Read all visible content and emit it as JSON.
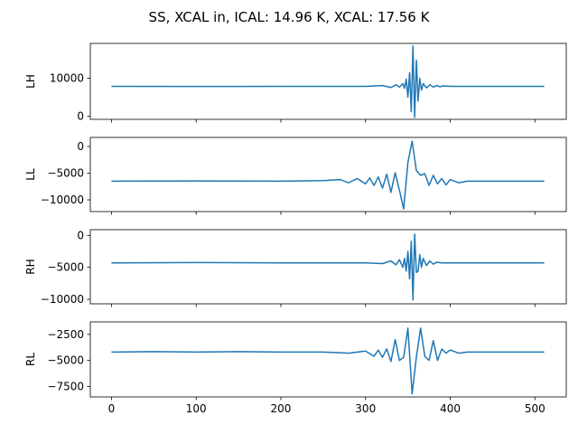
{
  "title": "SS, XCAL in, ICAL: 14.96 K, XCAL: 17.56 K",
  "line_color": "#1f77b4",
  "chart_data": [
    {
      "type": "line",
      "ylabel": "LH",
      "xlim": [
        -25,
        537
      ],
      "ylim": [
        -800,
        19200
      ],
      "yticks": [
        0,
        10000
      ],
      "ytick_labels": [
        "0",
        "10000"
      ],
      "baseline": 7900,
      "x": [
        0,
        100,
        200,
        300,
        320,
        330,
        336,
        340,
        344,
        346,
        348,
        350,
        352,
        354,
        356,
        358,
        360,
        362,
        364,
        366,
        368,
        372,
        376,
        380,
        384,
        388,
        392,
        400,
        420,
        450,
        511
      ],
      "y": [
        7900,
        7850,
        7900,
        7900,
        8100,
        7600,
        8300,
        7700,
        8600,
        7400,
        9800,
        5100,
        11500,
        1200,
        18500,
        -300,
        14800,
        4000,
        10000,
        6900,
        8600,
        7500,
        8300,
        7700,
        8100,
        7800,
        8000,
        7900,
        7900,
        7900,
        7900
      ]
    },
    {
      "type": "line",
      "ylabel": "LL",
      "xlim": [
        -25,
        537
      ],
      "ylim": [
        -12200,
        1700
      ],
      "yticks": [
        -10000,
        -5000,
        0
      ],
      "ytick_labels": [
        "−10000",
        "−5000",
        "0"
      ],
      "baseline": -6500,
      "x": [
        0,
        100,
        200,
        250,
        270,
        280,
        290,
        300,
        305,
        310,
        315,
        320,
        325,
        330,
        335,
        340,
        345,
        350,
        355,
        360,
        365,
        370,
        375,
        380,
        385,
        390,
        395,
        400,
        410,
        420,
        450,
        511
      ],
      "y": [
        -6500,
        -6450,
        -6500,
        -6400,
        -6200,
        -6800,
        -6000,
        -7000,
        -5900,
        -7300,
        -5700,
        -7800,
        -5200,
        -8600,
        -4900,
        -8200,
        -11700,
        -3000,
        1000,
        -4500,
        -5400,
        -5100,
        -7300,
        -5400,
        -7000,
        -6000,
        -7200,
        -6200,
        -6800,
        -6500,
        -6500,
        -6500
      ]
    },
    {
      "type": "line",
      "ylabel": "RH",
      "xlim": [
        -25,
        537
      ],
      "ylim": [
        -10700,
        900
      ],
      "yticks": [
        -10000,
        -5000,
        0
      ],
      "ytick_labels": [
        "−10000",
        "−5000",
        "0"
      ],
      "baseline": -4300,
      "x": [
        0,
        100,
        200,
        300,
        320,
        330,
        336,
        340,
        344,
        346,
        348,
        350,
        352,
        354,
        356,
        358,
        360,
        362,
        364,
        366,
        368,
        372,
        376,
        380,
        384,
        390,
        400,
        420,
        450,
        511
      ],
      "y": [
        -4300,
        -4250,
        -4300,
        -4300,
        -4400,
        -4000,
        -4600,
        -3800,
        -5000,
        -3600,
        -5600,
        -2500,
        -6800,
        -900,
        -10100,
        200,
        -5800,
        -5600,
        -3000,
        -5000,
        -3600,
        -4700,
        -4000,
        -4500,
        -4200,
        -4300,
        -4300,
        -4300,
        -4300,
        -4300
      ]
    },
    {
      "type": "line",
      "ylabel": "RL",
      "xlim": [
        -25,
        537
      ],
      "ylim": [
        -8500,
        -1300
      ],
      "yticks": [
        -7500,
        -5000,
        -2500
      ],
      "ytick_labels": [
        "−7500",
        "−5000",
        "−2500"
      ],
      "baseline": -4200,
      "x": [
        0,
        50,
        100,
        150,
        200,
        250,
        280,
        300,
        310,
        315,
        320,
        325,
        330,
        335,
        340,
        345,
        350,
        355,
        360,
        365,
        370,
        375,
        380,
        385,
        390,
        395,
        400,
        410,
        420,
        450,
        511
      ],
      "y": [
        -4200,
        -4150,
        -4200,
        -4150,
        -4200,
        -4200,
        -4300,
        -4100,
        -4600,
        -4000,
        -4700,
        -3900,
        -5100,
        -3000,
        -5000,
        -4700,
        -1900,
        -8200,
        -4700,
        -1900,
        -4600,
        -5000,
        -3100,
        -5000,
        -3900,
        -4300,
        -4000,
        -4300,
        -4200,
        -4200,
        -4200
      ]
    }
  ],
  "xticks": [
    0,
    100,
    200,
    300,
    400,
    500
  ],
  "xtick_labels": [
    "0",
    "100",
    "200",
    "300",
    "400",
    "500"
  ]
}
